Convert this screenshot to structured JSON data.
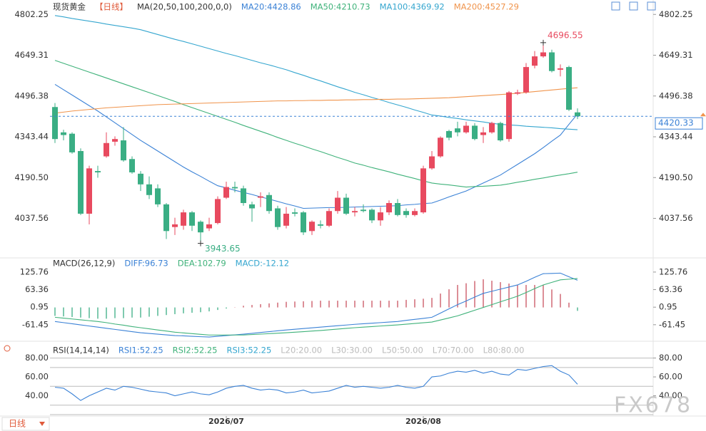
{
  "period_button": "日线",
  "watermark": "FX678",
  "chart_data": [
    {
      "type": "candlestick",
      "title": "现货黄金",
      "period": "【日线】",
      "indicator": "MA(20,50,100,200,0,0)",
      "up_color": "#e84a5f",
      "down_color": "#3aae84",
      "categories": [
        null,
        null,
        null,
        null,
        null,
        null,
        null,
        null,
        null,
        null,
        null,
        null,
        null,
        null,
        null,
        null,
        null,
        null,
        null,
        null,
        "2026/07",
        null,
        null,
        null,
        null,
        null,
        null,
        null,
        null,
        null,
        null,
        null,
        null,
        null,
        null,
        null,
        null,
        null,
        null,
        null,
        null,
        null,
        null,
        "2026/08",
        null,
        null,
        null,
        null,
        null,
        null,
        null,
        null,
        null,
        null,
        null,
        null,
        null,
        null,
        null,
        null,
        null,
        null
      ],
      "open": [
        4455,
        4360,
        4355,
        4290,
        4055,
        4215,
        4270,
        4325,
        4330,
        4260,
        4205,
        4165,
        4150,
        4090,
        4005,
        4010,
        4060,
        4025,
        4000,
        4020,
        4115,
        4155,
        4150,
        4090,
        4115,
        4125,
        4075,
        4010,
        4060,
        4060,
        3990,
        4015,
        4010,
        4065,
        4115,
        4060,
        4070,
        4070,
        4030,
        4060,
        4095,
        4065,
        4050,
        4060,
        4225,
        4270,
        4365,
        4375,
        4360,
        4385,
        4350,
        4360,
        4395,
        4335,
        4505,
        4510,
        4610,
        4645,
        4660,
        4595,
        4605,
        4435
      ],
      "high": [
        4470,
        4370,
        4360,
        4300,
        4235,
        4235,
        4360,
        4345,
        4380,
        4270,
        4215,
        4195,
        4165,
        4095,
        4040,
        4070,
        4065,
        4030,
        4040,
        4120,
        4175,
        4175,
        4160,
        4100,
        4135,
        4135,
        4085,
        4080,
        4075,
        4065,
        4030,
        4030,
        4075,
        4140,
        4130,
        4080,
        4090,
        4075,
        4080,
        4105,
        4110,
        4075,
        4075,
        4235,
        4290,
        4345,
        4370,
        4400,
        4400,
        4395,
        4380,
        4400,
        4400,
        4515,
        4520,
        4620,
        4665,
        4696.55,
        4670,
        4615,
        4610,
        4450
      ],
      "low": [
        4320,
        4330,
        4280,
        4050,
        4015,
        4190,
        4265,
        4310,
        4250,
        4205,
        4140,
        4110,
        4080,
        3960,
        3975,
        3995,
        3990,
        3943.65,
        3990,
        4015,
        4110,
        4135,
        4085,
        4025,
        4080,
        4055,
        3995,
        4000,
        4045,
        3975,
        3975,
        4000,
        4005,
        4055,
        4050,
        4045,
        4060,
        4020,
        4010,
        4050,
        4045,
        4040,
        4045,
        4055,
        4220,
        4265,
        4330,
        4345,
        4355,
        4330,
        4320,
        4355,
        4325,
        4325,
        4500,
        4505,
        4600,
        4640,
        4585,
        4570,
        4440,
        4410
      ],
      "close": [
        4335,
        4350,
        4285,
        4055,
        4225,
        4210,
        4320,
        4335,
        4255,
        4210,
        4165,
        4125,
        4090,
        3990,
        4015,
        4060,
        4010,
        3985,
        4015,
        4110,
        4155,
        4150,
        4095,
        4075,
        4120,
        4065,
        4005,
        4055,
        4055,
        3985,
        4025,
        4010,
        4065,
        4115,
        4055,
        4065,
        4065,
        4030,
        4060,
        4095,
        4050,
        4050,
        4065,
        4225,
        4270,
        4340,
        4340,
        4360,
        4385,
        4335,
        4360,
        4395,
        4330,
        4510,
        4510,
        4605,
        4645,
        4660,
        4590,
        4600,
        4445,
        4420.33
      ],
      "series": [
        {
          "name": "MA20:4428.86",
          "color": "#3b82d6",
          "values": [
            4540,
            4520,
            4500,
            4480,
            4460,
            4440,
            4418,
            4396,
            4374,
            4352,
            4330,
            4310,
            4290,
            4270,
            4250,
            4230,
            4212,
            4195,
            4177,
            4160,
            4152,
            4143,
            4135,
            4127,
            4118,
            4110,
            4101,
            4092,
            4084,
            4075,
            4076,
            4077,
            4078,
            4078,
            4079,
            4080,
            4081,
            4082,
            4083,
            4084,
            4085,
            4088,
            4090,
            4093,
            4095,
            4106,
            4118,
            4129,
            4140,
            4155,
            4170,
            4185,
            4200,
            4220,
            4240,
            4260,
            4280,
            4303,
            4327,
            4350,
            4390,
            4428.86
          ]
        },
        {
          "name": "MA50:4210.73",
          "color": "#3fb27a",
          "values": [
            4630,
            4619,
            4608,
            4597,
            4586,
            4575,
            4564,
            4553,
            4542,
            4531,
            4520,
            4509,
            4498,
            4487,
            4476,
            4464,
            4453,
            4442,
            4431,
            4420,
            4409,
            4398,
            4386,
            4375,
            4364,
            4353,
            4341,
            4330,
            4319,
            4309,
            4298,
            4288,
            4277,
            4266,
            4256,
            4245,
            4237,
            4228,
            4220,
            4212,
            4203,
            4195,
            4187,
            4178,
            4170,
            4166,
            4163,
            4159,
            4155,
            4157,
            4158,
            4160,
            4162,
            4167,
            4173,
            4178,
            4184,
            4189,
            4195,
            4200,
            4205,
            4210.73
          ]
        },
        {
          "name": "MA100:4369.92",
          "color": "#35a6cf",
          "values": [
            4798,
            4793,
            4787,
            4782,
            4777,
            4772,
            4766,
            4761,
            4756,
            4751,
            4745,
            4736,
            4727,
            4718,
            4709,
            4701,
            4692,
            4683,
            4674,
            4665,
            4656,
            4648,
            4639,
            4630,
            4621,
            4613,
            4604,
            4595,
            4584,
            4574,
            4563,
            4553,
            4542,
            4531,
            4521,
            4510,
            4501,
            4491,
            4482,
            4472,
            4463,
            4454,
            4444,
            4435,
            4425,
            4421,
            4416,
            4412,
            4407,
            4403,
            4399,
            4394,
            4390,
            4388,
            4386,
            4383,
            4381,
            4379,
            4377,
            4374,
            4372,
            4369.92
          ]
        },
        {
          "name": "MA200:4527.29",
          "color": "#f0944c",
          "values": [
            4432,
            4436,
            4440,
            4443,
            4446,
            4449,
            4452,
            4454,
            4456,
            4458,
            4460,
            4462,
            4464,
            4465,
            4466,
            4467,
            4468,
            4469,
            4470,
            4471,
            4472,
            4473,
            4474,
            4475,
            4476,
            4477,
            4478,
            4478,
            4479,
            4479,
            4480,
            4480,
            4481,
            4481,
            4482,
            4482,
            4483,
            4483,
            4484,
            4484,
            4485,
            4485,
            4486,
            4487,
            4488,
            4489,
            4490,
            4492,
            4494,
            4496,
            4498,
            4500,
            4502,
            4504,
            4507,
            4510,
            4513,
            4516,
            4519,
            4522,
            4525,
            4527.29
          ]
        }
      ],
      "ylim": [
        3900,
        4835
      ],
      "yticks": [
        4037.56,
        {
          "value": 4190.5,
          "label": "4190.50"
        },
        4343.44,
        4496.38,
        4649.31,
        4802.25
      ]
    },
    {
      "type": "macd",
      "indicator": "MACD(26,12,9)",
      "series": [
        {
          "name": "DIFF:96.73",
          "color": "#3b82d6",
          "values": [
            -50,
            -54,
            -58,
            -62,
            -66,
            -70,
            -74,
            -78,
            -82,
            -86,
            -90,
            -92.5,
            -95,
            -97.5,
            -100,
            -101,
            -102.5,
            -104,
            -105,
            -102.5,
            -100,
            -97.5,
            -95,
            -92,
            -89,
            -86,
            -83,
            -80,
            -77.5,
            -75,
            -72.5,
            -70,
            -67.5,
            -65,
            -62.5,
            -60,
            -58,
            -56,
            -54,
            -52,
            -50,
            -46,
            -42.5,
            -39,
            -35,
            -20,
            -5,
            10,
            23,
            37,
            50,
            57.5,
            65,
            72.5,
            80,
            93,
            107,
            120,
            121,
            122,
            109,
            96.73
          ]
        },
        {
          "name": "DEA:102.79",
          "color": "#3fb27a",
          "values": [
            -35,
            -38,
            -41,
            -44,
            -47,
            -50,
            -54,
            -59,
            -63,
            -68,
            -72,
            -76,
            -80,
            -84,
            -88,
            -90.5,
            -93,
            -95.5,
            -98,
            -98,
            -98,
            -98,
            -98,
            -96.4,
            -94.8,
            -93.2,
            -91.6,
            -90,
            -88,
            -86,
            -84,
            -82,
            -79.5,
            -77,
            -74.5,
            -72,
            -70,
            -68,
            -66,
            -64,
            -62,
            -59.5,
            -57,
            -54.5,
            -52,
            -44.7,
            -37.3,
            -30,
            -20,
            -10,
            0,
            10,
            20,
            30,
            40,
            53,
            67,
            80,
            89,
            98,
            100.5,
            102.79
          ]
        }
      ],
      "histogram": {
        "name": "MACD:-12.12",
        "legend_color": "#35a6cf",
        "up_color": "#c9525f",
        "down_color": "#3aae84",
        "values": [
          -30,
          -32,
          -34,
          -36,
          -38,
          -40,
          -40,
          -38,
          -38,
          -36,
          -36,
          -33,
          -30,
          -27,
          -24,
          -21,
          -19,
          -17,
          -14,
          -9,
          -4,
          1,
          6,
          8.8,
          11.6,
          14.4,
          17.2,
          20,
          21,
          22,
          23,
          24,
          24,
          24,
          24,
          24,
          24,
          24,
          24,
          24,
          24,
          27,
          29,
          31,
          34,
          49.4,
          64.6,
          80,
          86,
          94,
          100,
          95,
          90,
          85,
          80,
          80,
          80,
          80,
          64,
          48,
          17,
          -12.12
        ]
      },
      "ylim": [
        -110,
        166
      ],
      "yticks": [
        -61.45,
        0.95,
        63.36,
        125.76
      ]
    },
    {
      "type": "line",
      "indicator": "RSI(14,14,14)",
      "series": [
        {
          "name": "RSI1:52.25",
          "color": "#3b82d6",
          "values": [
            49,
            48,
            42,
            35,
            40,
            44,
            48,
            46,
            50,
            49,
            47,
            45,
            44,
            43,
            40,
            42,
            44,
            42,
            41,
            44,
            48,
            50,
            51,
            48,
            46,
            47,
            46,
            43,
            44,
            46,
            43,
            44,
            45,
            48,
            51,
            49,
            50,
            49,
            48,
            49,
            51,
            49,
            48,
            50,
            60,
            61,
            64,
            66,
            65,
            67,
            64,
            66,
            63,
            62,
            68,
            67,
            69,
            71,
            72,
            66,
            62,
            52.25
          ]
        }
      ],
      "legend": [
        {
          "name": "RSI2:52.25",
          "color": "#3fb27a"
        },
        {
          "name": "RSI3:52.25",
          "color": "#35a6cf"
        }
      ],
      "levels": [
        {
          "label": "L20:20.00",
          "value": 20
        },
        {
          "label": "L30:30.00",
          "value": 30
        },
        {
          "label": "L50:50.00",
          "value": 50
        },
        {
          "label": "L70:70.00",
          "value": 70
        },
        {
          "label": "L80:80.00",
          "value": 80
        }
      ],
      "level_color": "#bbbbbb",
      "ylim": [
        20,
        88
      ],
      "yticks": [
        {
          "value": 40,
          "label": "40.00"
        },
        {
          "value": 60,
          "label": "60.00"
        },
        {
          "value": 80,
          "label": "80.00"
        }
      ]
    }
  ]
}
